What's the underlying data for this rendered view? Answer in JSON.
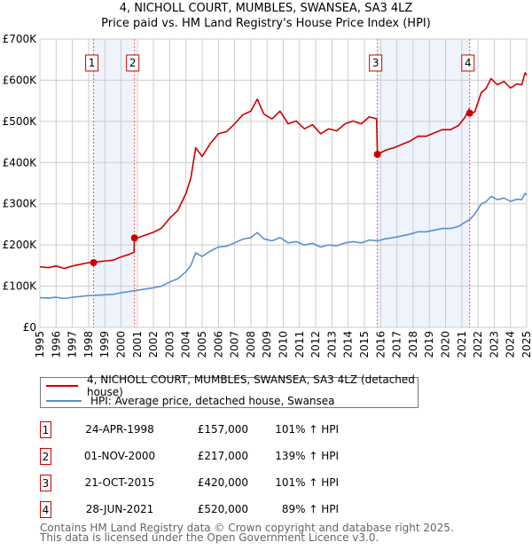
{
  "chart_data": {
    "type": "line",
    "title": "4, NICHOLL COURT, MUMBLES, SWANSEA, SA3 4LZ",
    "subtitle": "Price paid vs. HM Land Registry's House Price Index (HPI)",
    "xlim": [
      1995,
      2025
    ],
    "ylim": [
      0,
      700000
    ],
    "y_ticks": [
      {
        "v": 0,
        "label": "£0"
      },
      {
        "v": 100000,
        "label": "£100K"
      },
      {
        "v": 200000,
        "label": "£200K"
      },
      {
        "v": 300000,
        "label": "£300K"
      },
      {
        "v": 400000,
        "label": "£400K"
      },
      {
        "v": 500000,
        "label": "£500K"
      },
      {
        "v": 600000,
        "label": "£600K"
      },
      {
        "v": 700000,
        "label": "£700K"
      }
    ],
    "x_ticks": [
      "1995",
      "1996",
      "1997",
      "1998",
      "1999",
      "2000",
      "2001",
      "2002",
      "2003",
      "2004",
      "2005",
      "2006",
      "2007",
      "2008",
      "2009",
      "2010",
      "2011",
      "2012",
      "2013",
      "2014",
      "2015",
      "2016",
      "2017",
      "2018",
      "2019",
      "2020",
      "2021",
      "2022",
      "2023",
      "2024",
      "2025"
    ],
    "grid": true,
    "series": [
      {
        "name": "4, NICHOLL COURT, MUMBLES, SWANSEA, SA3 4LZ (detached house)",
        "color": "#cc0000",
        "x": [
          1995,
          1995.5,
          1996,
          1996.5,
          1997,
          1997.5,
          1998,
          1998.31,
          1998.5,
          1999,
          1999.5,
          2000,
          2000.5,
          2000.8,
          2000.83,
          2001,
          2001.5,
          2002,
          2002.5,
          2003,
          2003.5,
          2004,
          2004.3,
          2004.6,
          2005,
          2005.5,
          2006,
          2006.5,
          2007,
          2007.5,
          2008,
          2008.4,
          2008.8,
          2009.3,
          2009.8,
          2010.3,
          2010.8,
          2011.3,
          2011.8,
          2012.3,
          2012.8,
          2013.3,
          2013.8,
          2014.3,
          2014.8,
          2015.3,
          2015.75,
          2015.8,
          2016.3,
          2016.8,
          2017.3,
          2017.8,
          2018.3,
          2018.8,
          2019.3,
          2019.8,
          2020.3,
          2020.8,
          2021.2,
          2021.45,
          2021.49,
          2021.8,
          2022.2,
          2022.5,
          2022.8,
          2023.2,
          2023.6,
          2024,
          2024.4,
          2024.7,
          2024.9,
          2025
        ],
        "y": [
          147000,
          145000,
          149000,
          143000,
          149000,
          153000,
          157000,
          157000,
          159000,
          161000,
          163000,
          171000,
          177000,
          183000,
          217000,
          217000,
          224000,
          231000,
          241000,
          265000,
          284000,
          325000,
          362000,
          436000,
          415000,
          446000,
          470000,
          475000,
          494000,
          516000,
          525000,
          554000,
          518000,
          506000,
          525000,
          494000,
          501000,
          482000,
          492000,
          470000,
          482000,
          477000,
          494000,
          501000,
          494000,
          511000,
          506000,
          420000,
          430000,
          436000,
          444000,
          452000,
          464000,
          464000,
          472000,
          480000,
          480000,
          490000,
          510000,
          530000,
          520000,
          523000,
          570000,
          580000,
          604000,
          589000,
          597000,
          581000,
          591000,
          589000,
          618000,
          612000
        ]
      },
      {
        "name": "HPI: Average price, detached house, Swansea",
        "color": "#5b8fd0",
        "x": [
          1995,
          1995.5,
          1996,
          1996.5,
          1997,
          1997.5,
          1998,
          1998.5,
          1999,
          1999.5,
          2000,
          2000.5,
          2001,
          2001.5,
          2002,
          2002.5,
          2003,
          2003.5,
          2004,
          2004.3,
          2004.6,
          2005,
          2005.5,
          2006,
          2006.5,
          2007,
          2007.5,
          2008,
          2008.4,
          2008.8,
          2009.3,
          2009.8,
          2010.3,
          2010.8,
          2011.3,
          2011.8,
          2012.3,
          2012.8,
          2013.3,
          2013.8,
          2014.3,
          2014.8,
          2015.3,
          2015.8,
          2016.3,
          2016.8,
          2017.3,
          2017.8,
          2018.3,
          2018.8,
          2019.3,
          2019.8,
          2020.3,
          2020.8,
          2021.2,
          2021.5,
          2021.8,
          2022.2,
          2022.5,
          2022.8,
          2023.2,
          2023.6,
          2024,
          2024.4,
          2024.7,
          2024.9,
          2025
        ],
        "y": [
          72000,
          71000,
          73000,
          70000,
          73000,
          75000,
          77000,
          78000,
          79000,
          80000,
          84000,
          87000,
          90000,
          93000,
          96000,
          100000,
          110000,
          118000,
          135000,
          150000,
          181000,
          172000,
          185000,
          195000,
          197000,
          205000,
          214000,
          218000,
          230000,
          215000,
          210000,
          218000,
          205000,
          208000,
          200000,
          204000,
          195000,
          200000,
          198000,
          205000,
          208000,
          205000,
          212000,
          210000,
          215000,
          218000,
          222000,
          226000,
          232000,
          232000,
          236000,
          240000,
          240000,
          245000,
          255000,
          262000,
          275000,
          300000,
          305000,
          318000,
          310000,
          314000,
          306000,
          311000,
          310000,
          325000,
          322000
        ]
      }
    ],
    "sales": [
      {
        "label": "1",
        "x": 1998.31,
        "price": 157000,
        "date": "24-APR-1998",
        "price_text": "£157,000",
        "hpi_text": "101% ↑ HPI"
      },
      {
        "label": "2",
        "x": 2000.83,
        "price": 217000,
        "date": "01-NOV-2000",
        "price_text": "£217,000",
        "hpi_text": "139% ↑ HPI"
      },
      {
        "label": "3",
        "x": 2015.8,
        "price": 420000,
        "date": "21-OCT-2015",
        "price_text": "£420,000",
        "hpi_text": "101% ↑ HPI"
      },
      {
        "label": "4",
        "x": 2021.49,
        "price": 520000,
        "date": "28-JUN-2021",
        "price_text": "£520,000",
        "hpi_text": "89% ↑ HPI"
      }
    ],
    "shaded_ranges": [
      [
        1998.31,
        2000.83
      ],
      [
        2015.8,
        2021.49
      ]
    ],
    "legend_placement": "below"
  },
  "footer": {
    "line1": "Contains HM Land Registry data © Crown copyright and database right 2025.",
    "line2": "This data is licensed under the Open Government Licence v3.0."
  }
}
